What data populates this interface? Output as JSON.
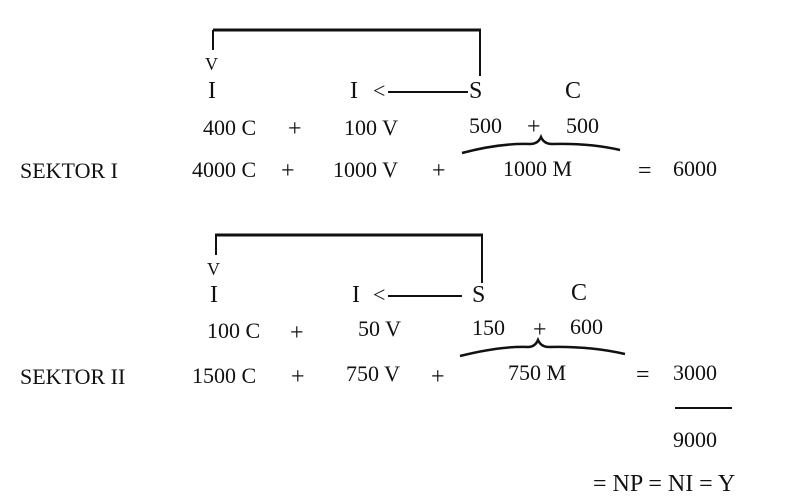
{
  "sector1": {
    "top_labels": [
      "V",
      "I",
      "I",
      "<",
      "S",
      "C"
    ],
    "row_sub": {
      "c": "400 C",
      "plus1": "+",
      "v": "100 V",
      "s": "500",
      "plus2": "+",
      "cc": "500"
    },
    "label": "SEKTOR I",
    "row_main": {
      "c": "4000 C",
      "plus1": "+",
      "v": "1000 V",
      "plus2": "+",
      "m": "1000 M",
      "eq": "=",
      "total": "6000"
    }
  },
  "sector2": {
    "top_labels": [
      "V",
      "I",
      "I",
      "<",
      "S",
      "C"
    ],
    "row_sub": {
      "c": "100 C",
      "plus1": "+",
      "v": "50 V",
      "s": "150",
      "plus2": "+",
      "cc": "600"
    },
    "label": "SEKTOR II",
    "row_main": {
      "c": "1500 C",
      "plus1": "+",
      "v": "750 V",
      "plus2": "+",
      "m": "750 M",
      "eq": "=",
      "total": "3000"
    }
  },
  "sum": {
    "total": "9000",
    "identity": "= NP = NI = Y"
  }
}
